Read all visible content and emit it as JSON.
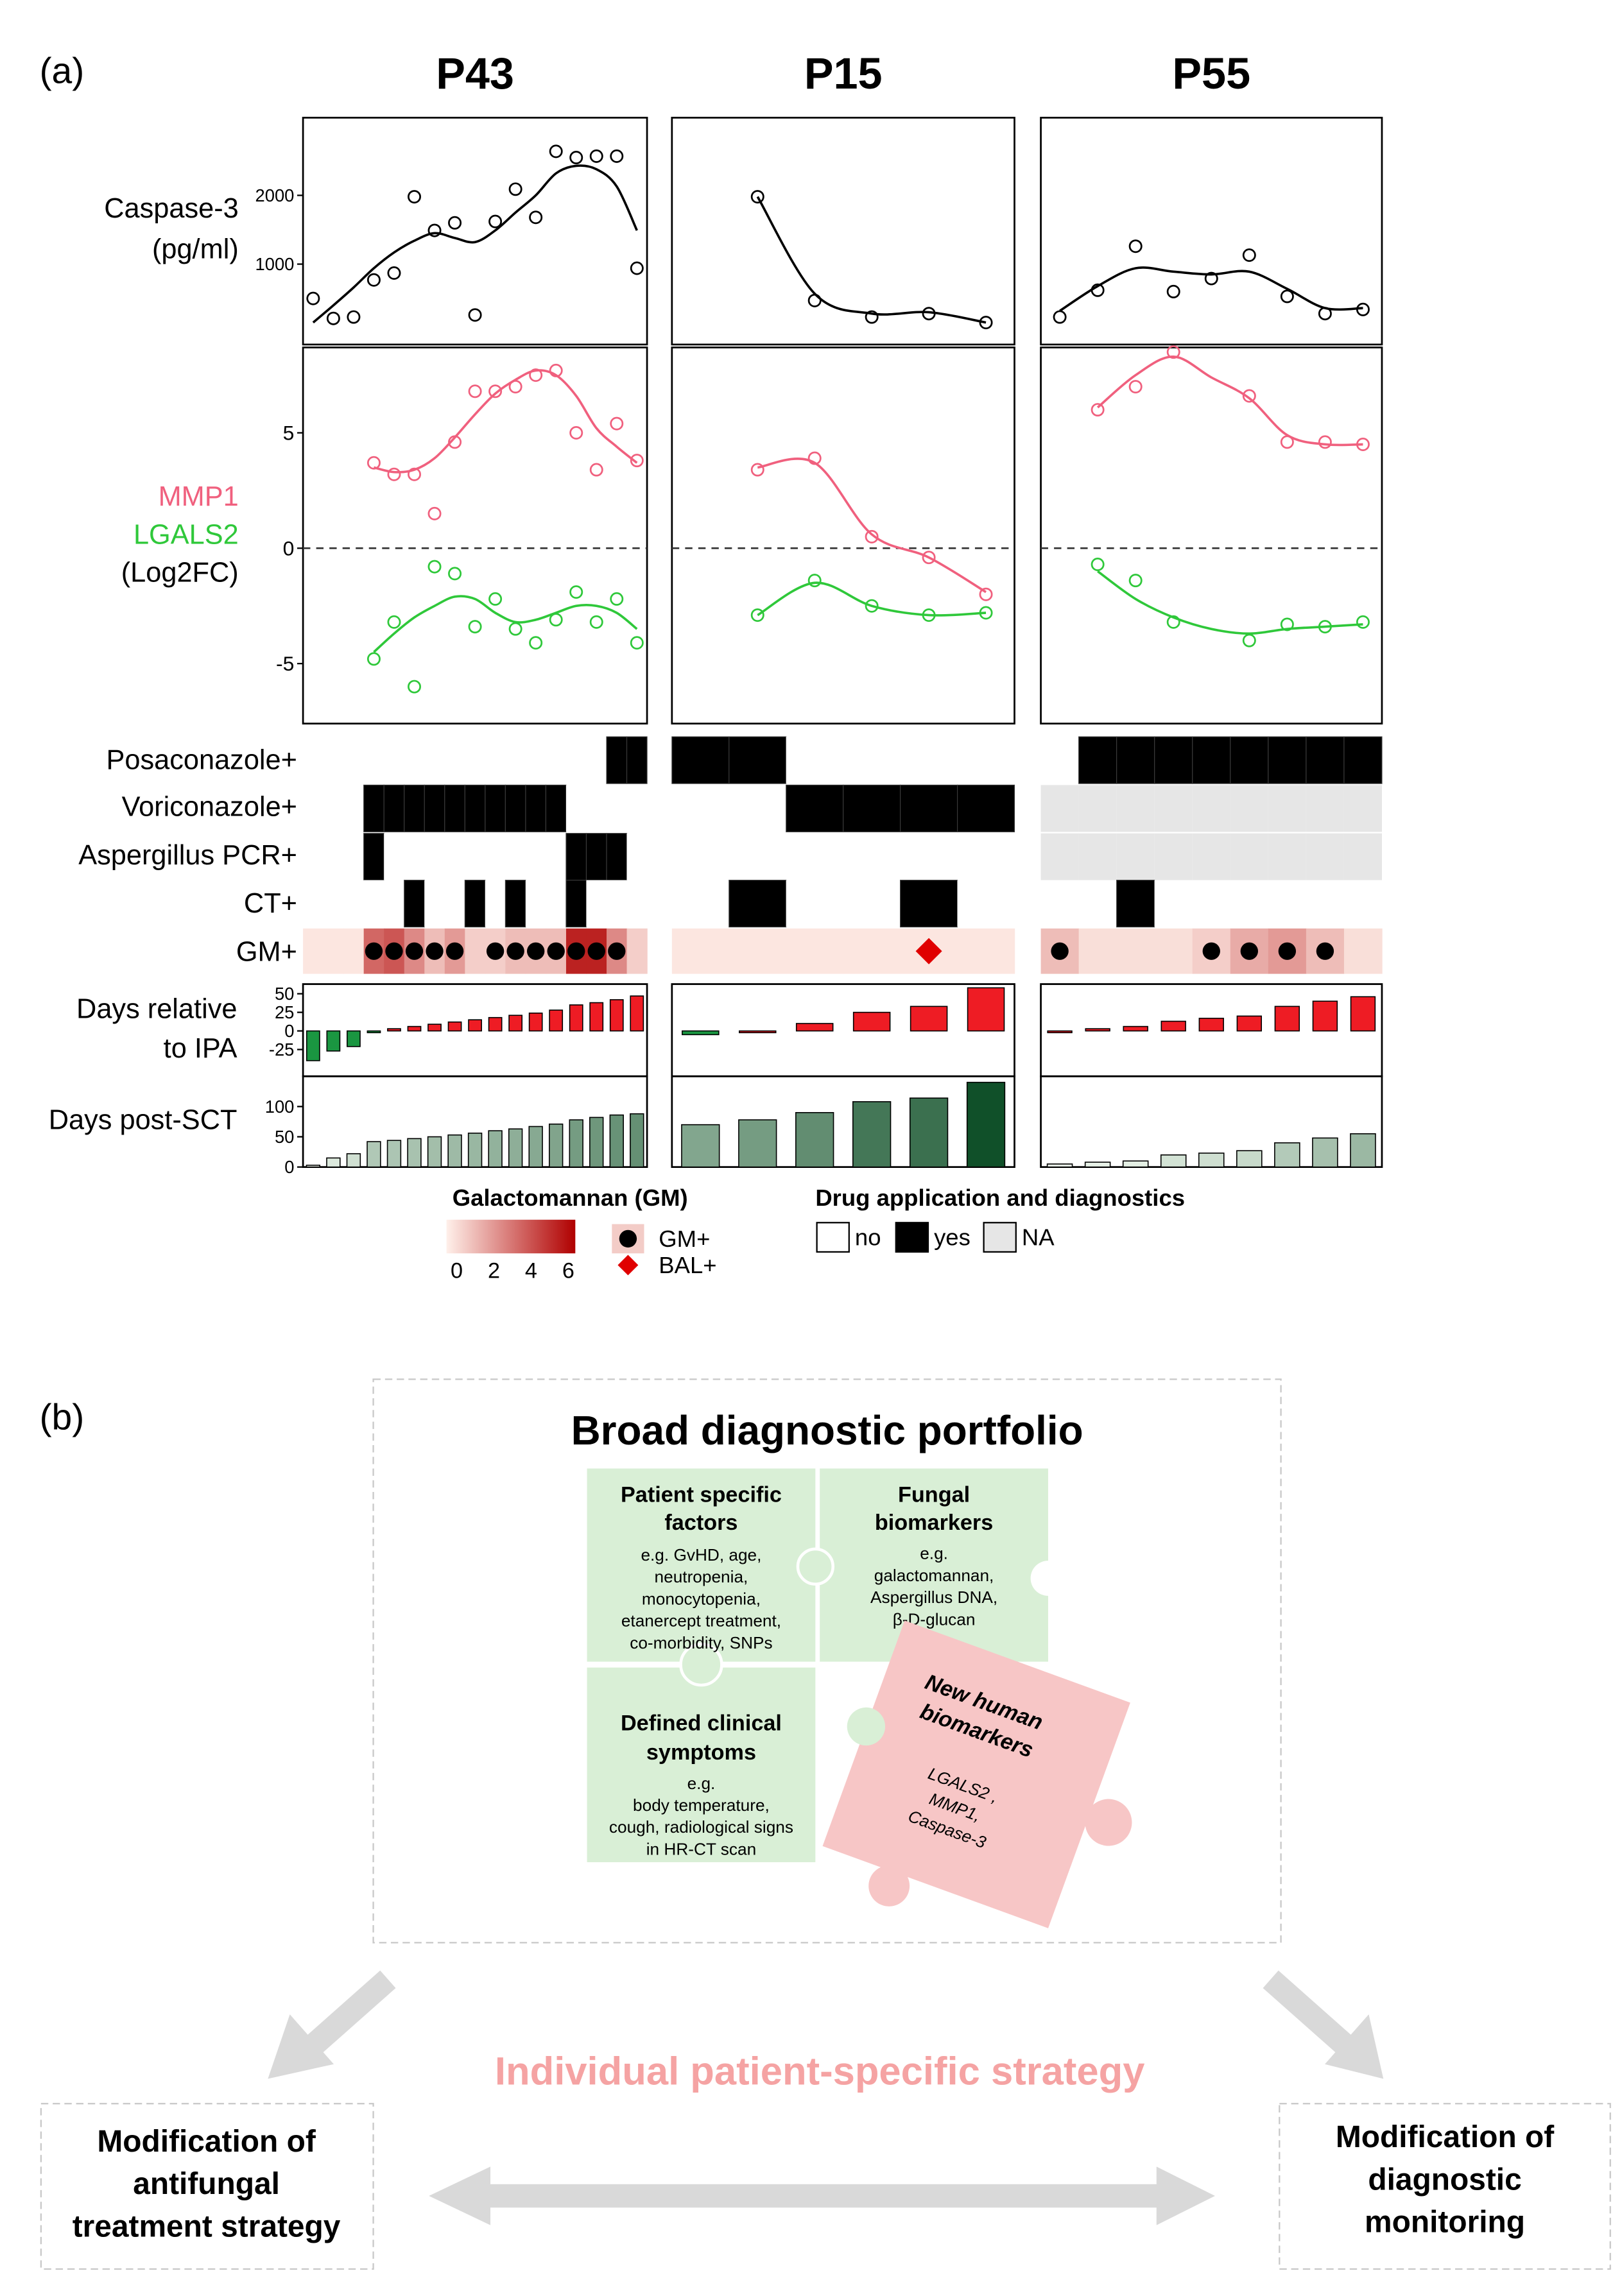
{
  "chart_data": {
    "type": "multipanel",
    "label": "(a)",
    "rows": {
      "caspase": {
        "label_lines": [
          "Caspase-3",
          "(pg/ml)"
        ],
        "ylim": [
          -170,
          3130
        ],
        "yticks": [
          1000,
          2000
        ],
        "color": "#000000"
      },
      "log2fc": {
        "series": [
          {
            "name": "MMP1",
            "color": "#f0607e"
          },
          {
            "name": "LGALS2",
            "color": "#2fc83a"
          }
        ],
        "unit_label": "(Log2FC)",
        "ylim": [
          -7.6,
          8.7
        ],
        "yticks": [
          -5,
          0,
          5
        ],
        "reference_line": 0
      },
      "heatmap": {
        "labels": [
          "Posaconazole+",
          "Voriconazole+",
          "Aspergillus PCR+",
          "CT+"
        ],
        "colors": {
          "no": "#ffffff",
          "yes": "#000000",
          "na": "#e6e6e6"
        }
      },
      "gm": {
        "label": "GM+",
        "lim": [
          0,
          7
        ],
        "colors": [
          "#fff0ea",
          "#b00000"
        ]
      },
      "ipa": {
        "label_lines": [
          "Days relative",
          "to IPA"
        ],
        "ylim": [
          -61,
          63
        ],
        "yticks": [
          -25,
          0,
          25,
          50
        ],
        "positive_color": "#ee1c24",
        "negative_color": "#1a9641"
      },
      "sct": {
        "label": "Days post-SCT",
        "ylim": [
          0,
          150
        ],
        "yticks": [
          0,
          50,
          100
        ],
        "colors": [
          "#f4fbf2",
          "#00441b"
        ]
      }
    },
    "patients": [
      {
        "title": "P43",
        "caspase": {
          "values": [
            500,
            210,
            230,
            770,
            870,
            1980,
            1490,
            1600,
            260,
            1620,
            2090,
            1680,
            2640,
            2550,
            2570,
            2570,
            940
          ],
          "fit": [
            150,
            400,
            660,
            940,
            1170,
            1340,
            1450,
            1380,
            1320,
            1490,
            1750,
            2000,
            2320,
            2430,
            2380,
            2130,
            1490
          ]
        },
        "log2fc": [
          {
            "values": [
              null,
              null,
              null,
              3.7,
              3.2,
              3.2,
              1.5,
              4.6,
              6.8,
              6.8,
              7.0,
              7.5,
              7.7,
              5.0,
              3.4,
              5.4,
              3.8
            ],
            "fit": [
              null,
              null,
              null,
              3.5,
              3.3,
              3.4,
              3.9,
              4.8,
              5.8,
              6.7,
              7.3,
              7.7,
              7.5,
              6.6,
              5.2,
              4.4,
              3.7
            ]
          },
          {
            "values": [
              null,
              null,
              null,
              -4.8,
              -3.2,
              -6.0,
              -0.8,
              -1.1,
              -3.4,
              -2.2,
              -3.5,
              -4.1,
              -3.1,
              -1.9,
              -3.2,
              -2.2,
              -4.1
            ],
            "fit": [
              null,
              null,
              null,
              -4.5,
              -3.7,
              -3.0,
              -2.5,
              -2.1,
              -2.2,
              -2.8,
              -3.2,
              -3.1,
              -2.8,
              -2.5,
              -2.5,
              -2.8,
              -3.5
            ]
          }
        ],
        "heatmap": [
          [
            0,
            0,
            0,
            0,
            0,
            0,
            0,
            0,
            0,
            0,
            0,
            0,
            0,
            0,
            0,
            1,
            1
          ],
          [
            0,
            0,
            0,
            1,
            1,
            1,
            1,
            1,
            1,
            1,
            1,
            1,
            1,
            0,
            0,
            0,
            0
          ],
          [
            0,
            0,
            0,
            1,
            0,
            0,
            0,
            0,
            0,
            0,
            0,
            0,
            0,
            1,
            1,
            1,
            0
          ],
          [
            0,
            0,
            0,
            0,
            0,
            1,
            0,
            0,
            1,
            0,
            1,
            0,
            0,
            1,
            0,
            0,
            0
          ]
        ],
        "gm": [
          0.3,
          0.3,
          0.3,
          4,
          4.5,
          3,
          1.5,
          2.5,
          1,
          1,
          1.5,
          1.5,
          1.5,
          6,
          6,
          3,
          1
        ],
        "gm_positive": [
          3,
          4,
          5,
          6,
          7,
          9,
          10,
          11,
          12,
          13,
          14,
          15
        ],
        "bal_positive": [],
        "days_ipa": [
          -40,
          -27,
          -21,
          -2,
          3,
          6,
          9,
          12,
          15,
          18,
          21,
          24,
          28,
          35,
          38,
          42,
          47
        ],
        "days_sct": [
          3,
          15,
          22,
          42,
          44,
          47,
          50,
          53,
          56,
          60,
          63,
          67,
          71,
          78,
          82,
          86,
          88
        ]
      },
      {
        "title": "P15",
        "caspase": {
          "values": [
            null,
            1980,
            470,
            230,
            280,
            150
          ],
          "fit": [
            null,
            1980,
            570,
            280,
            300,
            150
          ]
        },
        "log2fc": [
          {
            "values": [
              null,
              3.4,
              3.9,
              0.5,
              -0.4,
              -2.0
            ],
            "fit": [
              null,
              3.5,
              3.7,
              0.6,
              -0.4,
              -1.9
            ]
          },
          {
            "values": [
              null,
              -2.9,
              -1.4,
              -2.5,
              -2.9,
              -2.8
            ],
            "fit": [
              null,
              -2.9,
              -1.5,
              -2.5,
              -2.9,
              -2.8
            ]
          }
        ],
        "heatmap": [
          [
            1,
            1,
            0,
            0,
            0,
            0
          ],
          [
            0,
            0,
            1,
            1,
            1,
            1
          ],
          [
            0,
            0,
            0,
            0,
            0,
            0
          ],
          [
            0,
            1,
            0,
            0,
            1,
            0
          ]
        ],
        "gm": [
          0.3,
          0.3,
          0.3,
          0.3,
          0.3,
          0.3
        ],
        "gm_positive": [],
        "bal_positive": [
          4
        ],
        "days_ipa": [
          -5,
          0,
          10,
          25,
          33,
          58
        ],
        "days_sct": [
          70,
          78,
          90,
          108,
          114,
          140
        ]
      },
      {
        "title": "P55",
        "caspase": {
          "values": [
            230,
            620,
            1260,
            600,
            790,
            1130,
            530,
            280,
            340
          ],
          "fit": [
            320,
            680,
            940,
            890,
            850,
            890,
            640,
            360,
            360
          ]
        },
        "log2fc": [
          {
            "values": [
              null,
              6.0,
              7.0,
              8.5,
              null,
              6.6,
              4.6,
              4.6,
              4.5
            ],
            "fit": [
              null,
              6.1,
              7.5,
              8.3,
              7.4,
              6.5,
              4.9,
              4.5,
              4.5
            ]
          },
          {
            "values": [
              null,
              -0.7,
              -1.4,
              -3.2,
              null,
              -4.0,
              -3.3,
              -3.4,
              -3.2
            ],
            "fit": [
              null,
              -1.0,
              -2.2,
              -3.0,
              -3.5,
              -3.7,
              -3.5,
              -3.4,
              -3.3
            ]
          }
        ],
        "heatmap": [
          [
            0,
            1,
            1,
            1,
            1,
            1,
            1,
            1,
            1
          ],
          [
            null,
            null,
            null,
            null,
            null,
            null,
            null,
            null,
            null
          ],
          [
            null,
            null,
            null,
            null,
            null,
            null,
            null,
            null,
            null
          ],
          [
            0,
            0,
            1,
            0,
            0,
            0,
            0,
            0,
            0
          ]
        ],
        "gm": [
          1.5,
          0.5,
          0.5,
          0.5,
          1,
          2,
          2.5,
          1.5,
          0.5
        ],
        "gm_positive": [
          0,
          4,
          5,
          6,
          7
        ],
        "bal_positive": [],
        "days_ipa": [
          0,
          3,
          6,
          13,
          17,
          20,
          33,
          40,
          46
        ],
        "days_sct": [
          5,
          8,
          10,
          20,
          23,
          27,
          40,
          48,
          55
        ]
      }
    ],
    "gm_legend": {
      "title": "Galactomannan (GM)",
      "ticks": [
        0,
        2,
        4,
        6
      ],
      "gm_positive": "GM+",
      "bal_positive": "BAL+"
    },
    "drug_legend": {
      "title": "Drug application and diagnostics",
      "no": "no",
      "yes": "yes",
      "na": "NA"
    }
  },
  "diagram": {
    "label": "(b)",
    "title": "Broad diagnostic portfolio",
    "pieces": [
      {
        "title_lines": [
          "Patient specific",
          "factors"
        ],
        "body_lines": [
          "e.g. GvHD, age,",
          "neutropenia,",
          "monocytopenia,",
          "etanercept treatment,",
          "co-morbidity, SNPs"
        ]
      },
      {
        "title_lines": [
          "Fungal",
          "biomarkers"
        ],
        "body_lines": [
          "e.g.",
          "galactomannan,",
          "Aspergillus DNA,",
          "β-D-glucan"
        ]
      },
      {
        "title_lines": [
          "Defined clinical",
          "symptoms"
        ],
        "body_lines": [
          "e.g.",
          "body temperature,",
          "cough, radiological signs",
          "in HR-CT scan"
        ]
      },
      {
        "title_lines": [
          "New human",
          "biomarkers"
        ],
        "body_lines": [
          "LGALS2 ,",
          "MMP1,",
          "Caspase-3"
        ]
      }
    ],
    "strategy": "Individual patient-specific strategy",
    "left_box": [
      "Modification of",
      "antifungal",
      "treatment strategy"
    ],
    "right_box": [
      "Modification of",
      "diagnostic",
      "monitoring"
    ]
  }
}
